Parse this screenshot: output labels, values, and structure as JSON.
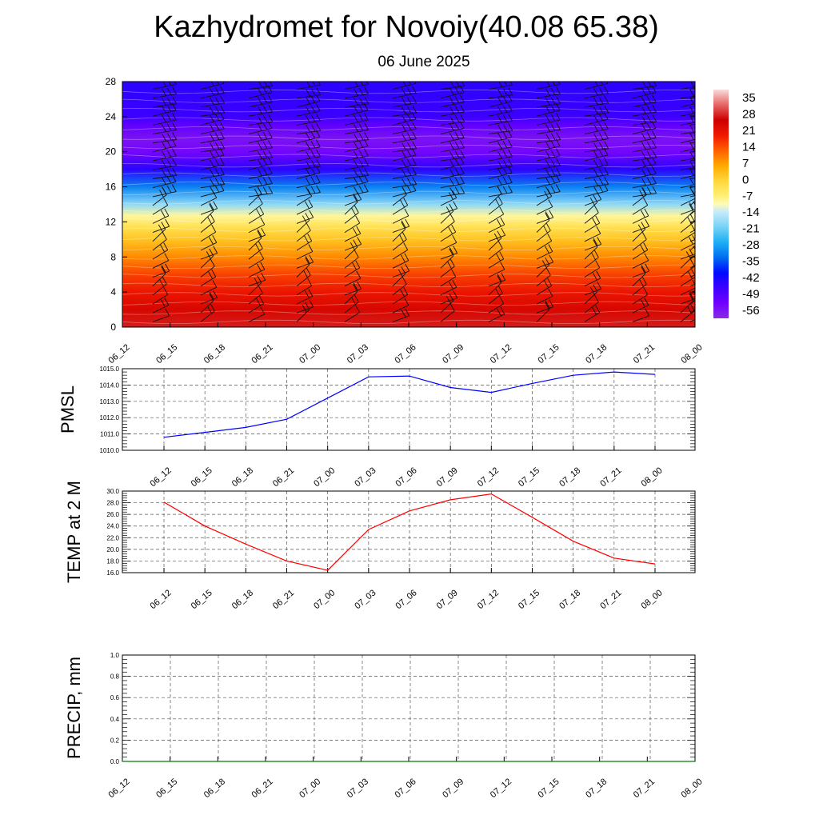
{
  "header": {
    "title": "Kazhydromet for Novoiy(40.08 65.38)",
    "subtitle": "06 June 2025"
  },
  "time_labels": [
    "06_12",
    "06_15",
    "06_18",
    "06_21",
    "07_00",
    "07_03",
    "07_06",
    "07_09",
    "07_12",
    "07_15",
    "07_18",
    "07_21",
    "08_00"
  ],
  "chart_data": [
    {
      "type": "heatmap",
      "x": [
        "06_12",
        "06_15",
        "06_18",
        "06_21",
        "07_00",
        "07_03",
        "07_06",
        "07_09",
        "07_12",
        "07_15",
        "07_18",
        "07_21",
        "08_00"
      ],
      "y_ticks": [
        0,
        4,
        8,
        12,
        16,
        20,
        24,
        28
      ],
      "ylim": [
        0,
        28
      ],
      "colorbar": {
        "labels": [
          "35",
          "28",
          "21",
          "14",
          "7",
          "0",
          "-7",
          "-14",
          "-21",
          "-28",
          "-35",
          "-42",
          "-49",
          "-56"
        ],
        "range": [
          -63,
          42
        ]
      },
      "temperature_profile": [
        {
          "level": 0,
          "value": 30
        },
        {
          "level": 2,
          "value": 26
        },
        {
          "level": 4,
          "value": 22
        },
        {
          "level": 6,
          "value": 17
        },
        {
          "level": 8,
          "value": 10
        },
        {
          "level": 10,
          "value": 3
        },
        {
          "level": 11.5,
          "value": -3
        },
        {
          "level": 12.7,
          "value": -9
        },
        {
          "level": 14,
          "value": -19
        },
        {
          "level": 16,
          "value": -33
        },
        {
          "level": 18,
          "value": -47
        },
        {
          "level": 20,
          "value": -57
        },
        {
          "level": 21.5,
          "value": -59
        },
        {
          "level": 23,
          "value": -54
        },
        {
          "level": 24,
          "value": -49
        },
        {
          "level": 28,
          "value": -47
        }
      ],
      "wind_barbs": true
    },
    {
      "type": "line",
      "ylabel": "PMSL",
      "x": [
        "06_12",
        "06_15",
        "06_18",
        "06_21",
        "07_00",
        "07_03",
        "07_06",
        "07_09",
        "07_12",
        "07_15",
        "07_18",
        "07_21",
        "08_00"
      ],
      "ylim": [
        1010.0,
        1015.0
      ],
      "y_ticks": [
        "1010.0",
        "1011.0",
        "1012.0",
        "1013.0",
        "1014.0",
        "1015.0"
      ],
      "series": [
        {
          "values": [
            1010.8,
            1011.1,
            1011.4,
            1011.9,
            1013.2,
            1014.5,
            1014.55,
            1013.85,
            1013.55,
            1014.1,
            1014.6,
            1014.8,
            1014.65
          ],
          "color": "#0000ff"
        }
      ],
      "grid": true
    },
    {
      "type": "line",
      "ylabel": "TEMP at 2 M",
      "x": [
        "06_12",
        "06_15",
        "06_18",
        "06_21",
        "07_00",
        "07_03",
        "07_06",
        "07_09",
        "07_12",
        "07_15",
        "07_18",
        "07_21",
        "08_00"
      ],
      "ylim": [
        16.0,
        30.0
      ],
      "y_ticks": [
        "16.0",
        "18.0",
        "20.0",
        "22.0",
        "24.0",
        "26.0",
        "28.0",
        "30.0"
      ],
      "series": [
        {
          "values": [
            28.1,
            24.0,
            20.9,
            18.0,
            16.4,
            23.4,
            26.6,
            28.5,
            29.5,
            25.5,
            21.4,
            18.5,
            17.5
          ],
          "color": "#ff0000"
        }
      ],
      "grid": true
    },
    {
      "type": "line",
      "ylabel": "PRECIP, mm",
      "x": [
        "06_12",
        "06_15",
        "06_18",
        "06_21",
        "07_00",
        "07_03",
        "07_06",
        "07_09",
        "07_12",
        "07_15",
        "07_18",
        "07_21",
        "08_00"
      ],
      "ylim": [
        0.0,
        1.0
      ],
      "y_ticks": [
        "0.0",
        "0.2",
        "0.4",
        "0.6",
        "0.8",
        "1.0"
      ],
      "series": [
        {
          "values": [
            0,
            0,
            0,
            0,
            0,
            0,
            0,
            0,
            0,
            0,
            0,
            0,
            0
          ],
          "color": "#008000"
        }
      ],
      "grid": true
    }
  ]
}
